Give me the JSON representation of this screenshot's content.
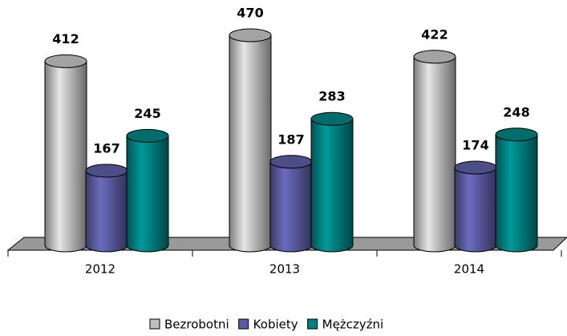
{
  "chart_data": {
    "type": "bar3d",
    "categories": [
      "2012",
      "2013",
      "2014"
    ],
    "series": [
      {
        "name": "Bezrobotni",
        "color": "#c0c0c0",
        "values": [
          412,
          470,
          422
        ]
      },
      {
        "name": "Kobiety",
        "color": "#5a5aa0",
        "values": [
          167,
          187,
          174
        ]
      },
      {
        "name": "Mężczyźni",
        "color": "#008080",
        "values": [
          245,
          283,
          248
        ]
      }
    ],
    "legend": "bottom"
  }
}
